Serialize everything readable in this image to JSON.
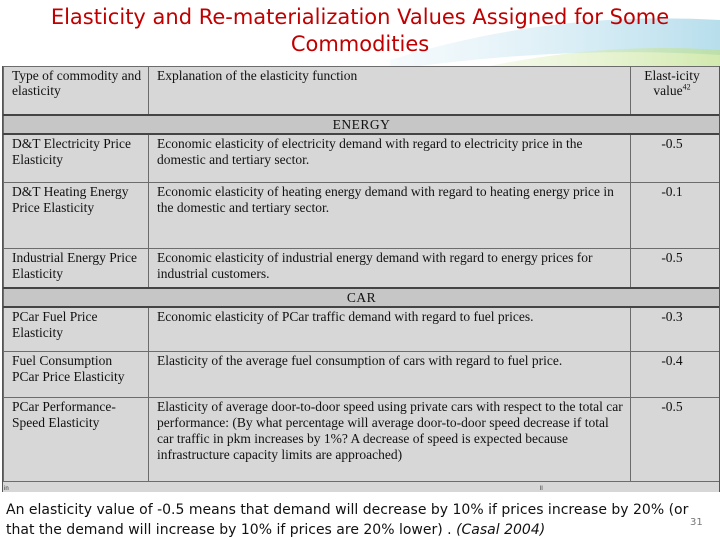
{
  "title": "Elasticity and Re-materialization Values Assigned for Some Commodities",
  "table": {
    "headers": {
      "type": "Type of commodity and elasticity",
      "explanation": "Explanation of the elasticity function",
      "value": "Elast-icity value",
      "value_sup": "42"
    },
    "sections": [
      {
        "name": "ENERGY",
        "rows": [
          {
            "type": "D&T Electricity Price Elasticity",
            "explanation": "Economic elasticity of electricity demand with regard to electricity price in the domestic and tertiary sector.",
            "value": "-0.5"
          },
          {
            "type": "D&T Heating Energy Price Elasticity",
            "explanation": "Economic elasticity of heating energy demand with regard to heating energy price in the domestic and tertiary sector.",
            "value": "-0.1"
          },
          {
            "type": "Industrial Energy Price Elasticity",
            "explanation": "Economic elasticity of industrial energy demand with regard to energy prices for industrial customers.",
            "value": "-0.5"
          }
        ]
      },
      {
        "name": "CAR",
        "rows": [
          {
            "type": "PCar Fuel Price Elasticity",
            "explanation": "Economic elasticity of PCar traffic demand with regard to fuel prices.",
            "value": "-0.3"
          },
          {
            "type": "Fuel Consumption PCar Price Elasticity",
            "explanation": "Elasticity of the average fuel consumption of cars with regard to fuel price.",
            "value": "-0.4"
          },
          {
            "type": "PCar Performance-Speed Elasticity",
            "explanation": "Elasticity of average door-to-door speed using private cars with respect to the total car performance: (By what percentage will average door-to-door speed decrease if total car traffic in pkm increases by 1%? A decrease of speed is expected because infrastructure capacity limits are approached)",
            "value": "-0.5"
          }
        ]
      }
    ],
    "footer_left": "in",
    "footer_right": "ll"
  },
  "caption": {
    "text": "An elasticity value of -0.5 means that demand will decrease by 10% if prices increase by 20% (or that the demand will increase by 10% if prices are 20% lower) . ",
    "citation": "(Casal 2004)"
  },
  "page_number": "31",
  "colors": {
    "title": "#c00000",
    "table_bg": "#d7d7d7",
    "section_bg": "#c6c6c6"
  }
}
